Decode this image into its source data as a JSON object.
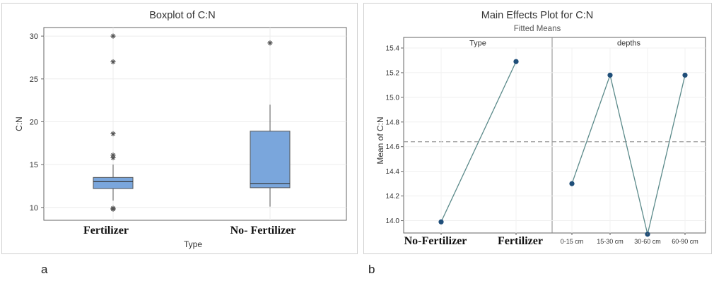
{
  "panel_labels": {
    "a": "a",
    "b": "b"
  },
  "chart_data": [
    {
      "type": "box",
      "title": "Boxplot of C:N",
      "xlabel": "Type",
      "ylabel": "C:N",
      "ylim": [
        8.5,
        31
      ],
      "yticks": [
        10,
        15,
        20,
        25,
        30
      ],
      "categories": [
        "Fertilizer",
        "No- Fertilizer"
      ],
      "color": "#7aa6dc",
      "boxes": [
        {
          "name": "Fertilizer",
          "q1": 12.2,
          "median": 13.0,
          "q3": 13.5,
          "whisker_low": 10.8,
          "whisker_high": 15.0,
          "outliers": [
            9.8,
            9.9,
            15.8,
            16.1,
            18.6,
            27.0,
            30.0
          ]
        },
        {
          "name": "No- Fertilizer",
          "q1": 12.3,
          "median": 12.8,
          "q3": 18.9,
          "whisker_low": 10.1,
          "whisker_high": 22.0,
          "outliers": [
            29.2
          ]
        }
      ]
    },
    {
      "type": "line",
      "title": "Main Effects Plot for C:N",
      "subtitle": "Fitted Means",
      "ylabel": "Mean of C:N",
      "ylim": [
        13.9,
        15.4
      ],
      "yticks": [
        14.0,
        14.2,
        14.4,
        14.6,
        14.8,
        15.0,
        15.2,
        15.4
      ],
      "reference_line": 14.64,
      "color": "#1f4e79",
      "line_color": "#5b8a8a",
      "panels": [
        {
          "name": "Type",
          "categories": [
            "No-Fertilizer",
            "Fertilizer"
          ],
          "values": [
            13.99,
            15.29
          ]
        },
        {
          "name": "depths",
          "categories": [
            "0-15 cm",
            "15-30 cm",
            "30-60 cm",
            "60-90 cm"
          ],
          "values": [
            14.3,
            15.18,
            13.89,
            15.18
          ]
        }
      ]
    }
  ]
}
